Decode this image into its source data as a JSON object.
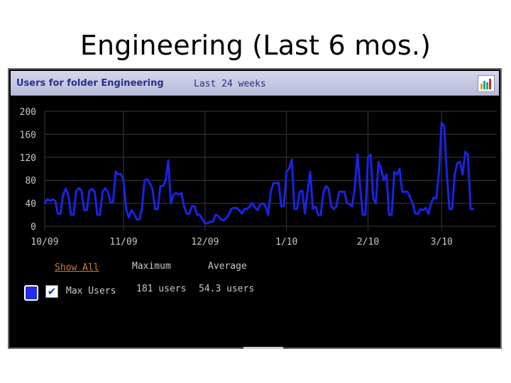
{
  "slide": {
    "title": "Engineering (Last 6 mos.)"
  },
  "widget": {
    "title": "Users for folder Engineering",
    "range": "Last 24 weeks",
    "show_all": "Show All",
    "columns": {
      "maximum": "Maximum",
      "average": "Average"
    },
    "series_row": {
      "name": "Max Users",
      "maximum": "181 users",
      "average": "54.3 users",
      "checked": true,
      "color": "#1f2fe6"
    }
  },
  "colors": {
    "line": "#1a23e6",
    "grid": "#3a3a3a",
    "axis_text": "#c8c8c8",
    "header_text": "#2a2f8a"
  },
  "chart_data": {
    "type": "line",
    "title": "Users for folder Engineering",
    "xlabel": "",
    "ylabel": "",
    "ylim": [
      0,
      200
    ],
    "yticks": [
      0,
      40,
      80,
      120,
      160,
      200
    ],
    "xticks": [
      "10/09",
      "11/09",
      "12/09",
      "1/10",
      "2/10",
      "3/10"
    ],
    "xtick_positions": [
      0,
      30,
      61,
      92,
      123,
      151
    ],
    "xlim": [
      0,
      172
    ],
    "grid": true,
    "legend": "bottom-left",
    "series": [
      {
        "name": "Max Users",
        "values": [
          40,
          47,
          44,
          47,
          44,
          22,
          22,
          55,
          65,
          55,
          20,
          20,
          62,
          66,
          62,
          28,
          28,
          62,
          65,
          60,
          20,
          20,
          60,
          66,
          60,
          42,
          42,
          95,
          90,
          91,
          80,
          30,
          15,
          28,
          22,
          12,
          12,
          30,
          80,
          82,
          75,
          65,
          30,
          30,
          70,
          70,
          80,
          115,
          40,
          55,
          58,
          55,
          58,
          35,
          22,
          22,
          35,
          35,
          20,
          20,
          12,
          5,
          5,
          8,
          8,
          20,
          18,
          12,
          10,
          14,
          20,
          30,
          32,
          32,
          28,
          22,
          30,
          30,
          35,
          40,
          33,
          28,
          38,
          40,
          35,
          20,
          60,
          75,
          75,
          76,
          35,
          35,
          95,
          100,
          116,
          30,
          30,
          60,
          62,
          22,
          60,
          95,
          30,
          35,
          20,
          20,
          58,
          70,
          65,
          35,
          30,
          35,
          60,
          60,
          60,
          40,
          38,
          35,
          70,
          125,
          70,
          20,
          20,
          120,
          125,
          48,
          40,
          112,
          100,
          80,
          90,
          20,
          20,
          95,
          90,
          100,
          60,
          60,
          60,
          50,
          40,
          22,
          22,
          30,
          28,
          32,
          22,
          40,
          50,
          48,
          95,
          180,
          175,
          90,
          30,
          30,
          90,
          110,
          112,
          90,
          130,
          125,
          30,
          30
        ]
      }
    ]
  }
}
